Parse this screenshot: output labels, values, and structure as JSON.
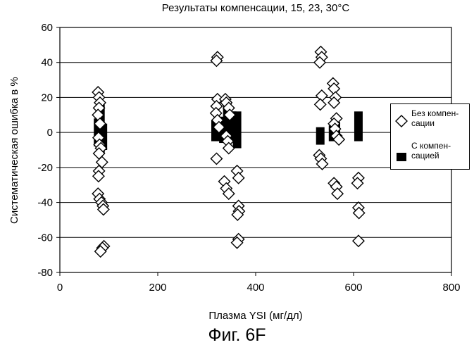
{
  "chart_data": {
    "type": "scatter",
    "title": "Результаты компенсации, 15, 23, 30°C",
    "xlabel": "Плазма YSI (мг/дл)",
    "ylabel": "Систематическая ошибка в %",
    "xlim": [
      0,
      800
    ],
    "ylim": [
      -80,
      60
    ],
    "xticks": [
      "0",
      "200",
      "400",
      "600",
      "800"
    ],
    "yticks": [
      "60",
      "40",
      "20",
      "0",
      "-20",
      "-40",
      "-60",
      "-80"
    ],
    "grid": "horizontal",
    "legend_position": "right",
    "series": [
      {
        "name": "Без компен-сации",
        "legend_line1": "Без компен-",
        "legend_line2": "сации",
        "marker": "diamond-open",
        "points": [
          [
            78,
            23
          ],
          [
            80,
            20
          ],
          [
            82,
            17
          ],
          [
            80,
            14
          ],
          [
            78,
            10
          ],
          [
            82,
            5
          ],
          [
            79,
            -3
          ],
          [
            81,
            -7
          ],
          [
            84,
            -9
          ],
          [
            80,
            -12
          ],
          [
            86,
            -17
          ],
          [
            80,
            -22
          ],
          [
            79,
            -25
          ],
          [
            78,
            -35
          ],
          [
            81,
            -38
          ],
          [
            85,
            -40
          ],
          [
            88,
            -42
          ],
          [
            89,
            -44
          ],
          [
            90,
            -65
          ],
          [
            87,
            -66
          ],
          [
            83,
            -68
          ],
          [
            322,
            43
          ],
          [
            320,
            41
          ],
          [
            322,
            19
          ],
          [
            320,
            15
          ],
          [
            319,
            11
          ],
          [
            322,
            7
          ],
          [
            325,
            3
          ],
          [
            338,
            19
          ],
          [
            340,
            17
          ],
          [
            345,
            14
          ],
          [
            347,
            10
          ],
          [
            340,
            -2
          ],
          [
            343,
            -5
          ],
          [
            345,
            -9
          ],
          [
            320,
            -15
          ],
          [
            336,
            -28
          ],
          [
            340,
            -32
          ],
          [
            345,
            -35
          ],
          [
            362,
            -22
          ],
          [
            365,
            -26
          ],
          [
            365,
            -42
          ],
          [
            366,
            -45
          ],
          [
            363,
            -47
          ],
          [
            365,
            -61
          ],
          [
            362,
            -63
          ],
          [
            533,
            46
          ],
          [
            535,
            43
          ],
          [
            531,
            40
          ],
          [
            535,
            21
          ],
          [
            532,
            16
          ],
          [
            530,
            -13
          ],
          [
            533,
            -15
          ],
          [
            536,
            -18
          ],
          [
            558,
            28
          ],
          [
            560,
            25
          ],
          [
            563,
            20
          ],
          [
            560,
            17
          ],
          [
            565,
            8
          ],
          [
            560,
            5
          ],
          [
            562,
            2
          ],
          [
            565,
            -2
          ],
          [
            570,
            -4
          ],
          [
            560,
            -29
          ],
          [
            565,
            -31
          ],
          [
            567,
            -35
          ],
          [
            610,
            -26
          ],
          [
            608,
            -29
          ],
          [
            610,
            -43
          ],
          [
            611,
            -46
          ],
          [
            610,
            -62
          ]
        ]
      },
      {
        "name": "С компен-сацией",
        "legend_line1": "С компен-",
        "legend_line2": "сацией",
        "marker": "rect-filled",
        "bars": [
          [
            78,
            -8,
            8
          ],
          [
            83,
            -12,
            16
          ],
          [
            88,
            -10,
            5
          ],
          [
            318,
            -5,
            7
          ],
          [
            326,
            -4,
            6
          ],
          [
            334,
            -6,
            9
          ],
          [
            342,
            -3,
            18
          ],
          [
            352,
            -5,
            12
          ],
          [
            362,
            -9,
            12
          ],
          [
            532,
            -7,
            3
          ],
          [
            558,
            -5,
            4
          ],
          [
            564,
            -3,
            6
          ],
          [
            610,
            -5,
            12
          ]
        ]
      }
    ]
  },
  "caption": "Фиг. 6F"
}
